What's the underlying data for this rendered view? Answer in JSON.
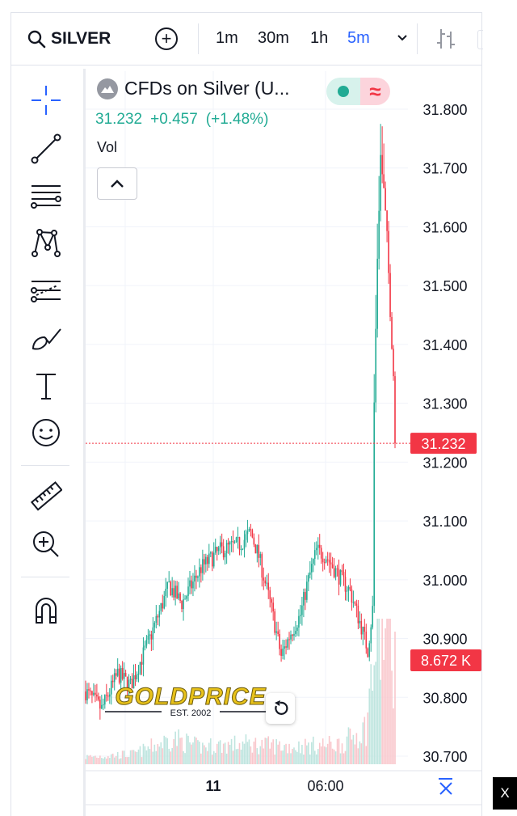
{
  "topbar": {
    "symbol": "SILVER",
    "timeframes": [
      "1m",
      "30m",
      "1h",
      "5m"
    ],
    "active_timeframe": "5m"
  },
  "legend": {
    "title": "CFDs on Silver (U...",
    "last": "31.232",
    "change": "+0.457",
    "change_pct": "(+1.48%)",
    "volume_label": "Vol"
  },
  "colors": {
    "up": "#22ab94",
    "down": "#f23645",
    "accent": "#2962ff",
    "price_line": "#f23645"
  },
  "icons": [
    "crosshair-icon",
    "trend-line-icon",
    "fib-retracement-icon",
    "pattern-icon",
    "prediction-icon",
    "brush-icon",
    "text-icon",
    "emoji-icon",
    "ruler-icon",
    "zoom-in-icon",
    "magnet-icon"
  ],
  "badges": {
    "price": "31.232",
    "volume": "8.672 K"
  },
  "watermark": {
    "brand": "GOLDPRICE",
    "est": "EST. 2002"
  },
  "close_label": "X",
  "chart_data": {
    "type": "candlestick",
    "symbol": "CFDs on Silver (U...",
    "interval": "5m",
    "ylim": [
      30.68,
      31.85
    ],
    "y_ticks": [
      31.8,
      31.7,
      31.6,
      31.5,
      31.4,
      31.3,
      31.2,
      31.1,
      31.0,
      30.9,
      30.8,
      30.7
    ],
    "y_tick_labels": [
      "31.800",
      "31.700",
      "31.600",
      "31.500",
      "31.400",
      "31.300",
      "31.200",
      "31.100",
      "31.000",
      "30.900",
      "30.800",
      "30.700"
    ],
    "x_tick_labels": [
      "11",
      "06:00"
    ],
    "last_price": 31.232,
    "last_volume": "8.672 K",
    "grid": true,
    "price_anchors": [
      [
        0,
        30.81
      ],
      [
        10,
        30.78
      ],
      [
        20,
        30.84
      ],
      [
        28,
        30.82
      ],
      [
        40,
        30.9
      ],
      [
        52,
        30.99
      ],
      [
        60,
        30.96
      ],
      [
        72,
        31.02
      ],
      [
        84,
        31.05
      ],
      [
        96,
        31.06
      ],
      [
        103,
        31.08
      ],
      [
        108,
        31.04
      ],
      [
        116,
        30.95
      ],
      [
        122,
        30.87
      ],
      [
        128,
        30.91
      ],
      [
        134,
        30.94
      ],
      [
        138,
        30.99
      ],
      [
        144,
        31.05
      ],
      [
        150,
        31.04
      ],
      [
        157,
        31.01
      ],
      [
        165,
        30.98
      ],
      [
        172,
        30.92
      ],
      [
        176,
        30.88
      ],
      [
        179,
        30.95
      ],
      [
        180,
        31.3
      ],
      [
        182,
        31.55
      ],
      [
        184,
        31.72
      ],
      [
        186,
        31.66
      ],
      [
        188,
        31.58
      ],
      [
        190,
        31.46
      ],
      [
        192,
        31.35
      ],
      [
        193,
        31.232
      ]
    ],
    "volume_profile": [
      [
        0,
        0.05
      ],
      [
        30,
        0.07
      ],
      [
        55,
        0.18
      ],
      [
        70,
        0.12
      ],
      [
        100,
        0.14
      ],
      [
        130,
        0.12
      ],
      [
        160,
        0.14
      ],
      [
        175,
        0.25
      ],
      [
        180,
        0.75
      ],
      [
        186,
        0.9
      ],
      [
        190,
        0.85
      ],
      [
        193,
        0.7
      ]
    ]
  }
}
